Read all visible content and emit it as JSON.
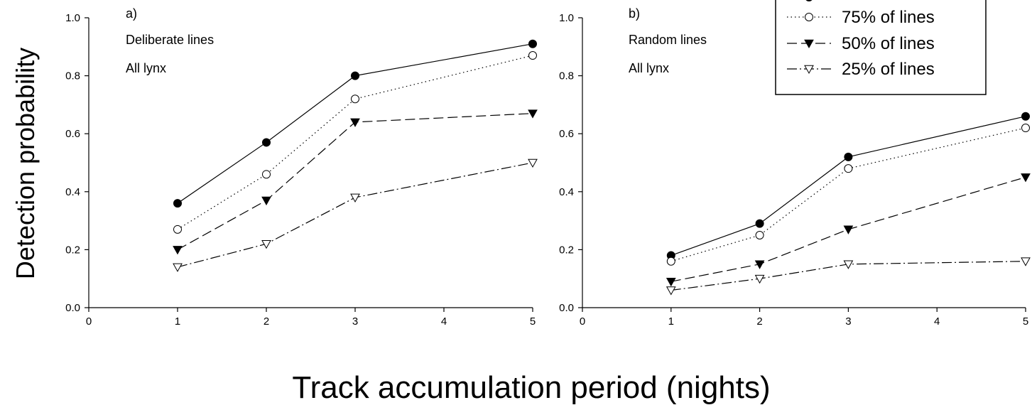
{
  "chart_data": {
    "type": "line",
    "ylabel": "Detection probability",
    "xlabel": "Track accumulation period (nights)",
    "panels": [
      {
        "panel_label": "a)",
        "annotations": [
          "Deliberate lines",
          "All lynx"
        ],
        "xlim": [
          0,
          5
        ],
        "ylim": [
          0,
          1.0
        ],
        "xticks": [
          0,
          1,
          2,
          3,
          4,
          5
        ],
        "yticks": [
          "0.0",
          "0.2",
          "0.4",
          "0.6",
          "0.8",
          "1.0"
        ],
        "x": [
          1,
          2,
          3,
          5
        ],
        "series": [
          {
            "values": [
              0.36,
              0.57,
              0.8,
              0.91
            ]
          },
          {
            "name": "75% of lines",
            "values": [
              0.27,
              0.46,
              0.72,
              0.87
            ]
          },
          {
            "name": "50% of lines",
            "values": [
              0.2,
              0.37,
              0.64,
              0.67
            ]
          },
          {
            "name": "25% of lines",
            "values": [
              0.14,
              0.22,
              0.38,
              0.5
            ]
          }
        ]
      },
      {
        "panel_label": "b)",
        "annotations": [
          "Random lines",
          "All lynx"
        ],
        "xlim": [
          0,
          5
        ],
        "ylim": [
          0,
          1.0
        ],
        "xticks": [
          0,
          1,
          2,
          3,
          4,
          5
        ],
        "yticks": [
          "0.0",
          "0.2",
          "0.4",
          "0.6",
          "0.8",
          "1.0"
        ],
        "x": [
          1,
          2,
          3,
          5
        ],
        "series": [
          {
            "values": [
              0.18,
              0.29,
              0.52,
              0.66
            ]
          },
          {
            "name": "75% of lines",
            "values": [
              0.16,
              0.25,
              0.48,
              0.62
            ]
          },
          {
            "name": "50% of lines",
            "values": [
              0.09,
              0.15,
              0.27,
              0.45
            ]
          },
          {
            "name": "25% of lines",
            "values": [
              0.06,
              0.1,
              0.15,
              0.16
            ]
          }
        ]
      }
    ],
    "legend": {
      "position": "top-right",
      "entries": [
        "75% of lines",
        "50% of lines",
        "25% of lines"
      ]
    }
  }
}
